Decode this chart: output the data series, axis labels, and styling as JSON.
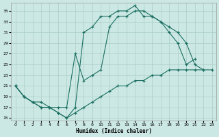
{
  "xlabel": "Humidex (Indice chaleur)",
  "background_color": "#cce8e4",
  "grid_color": "#aacec8",
  "line_color": "#1a6e60",
  "xlim": [
    -0.5,
    23.5
  ],
  "ylim": [
    14.5,
    36.5
  ],
  "yticks": [
    15,
    17,
    19,
    21,
    23,
    25,
    27,
    29,
    31,
    33,
    35
  ],
  "xticks": [
    0,
    1,
    2,
    3,
    4,
    5,
    6,
    7,
    8,
    9,
    10,
    11,
    12,
    13,
    14,
    15,
    16,
    17,
    18,
    19,
    20,
    21,
    22,
    23
  ],
  "line1_x": [
    0,
    1,
    2,
    3,
    4,
    5,
    6,
    7,
    8,
    9,
    10,
    11,
    12,
    13,
    14,
    15,
    16,
    17,
    18,
    19,
    20,
    21
  ],
  "line1_y": [
    21,
    19,
    18,
    17,
    17,
    16,
    15,
    17,
    31,
    32,
    34,
    34,
    35,
    35,
    36,
    34,
    34,
    33,
    31,
    29,
    25,
    26
  ],
  "line2_x": [
    0,
    1,
    2,
    3,
    4,
    5,
    6,
    7,
    8,
    9,
    10,
    11,
    12,
    13,
    14,
    15,
    16,
    17,
    18,
    19,
    20,
    21,
    22
  ],
  "line2_y": [
    21,
    19,
    18,
    18,
    17,
    17,
    17,
    27,
    22,
    23,
    24,
    32,
    34,
    34,
    35,
    35,
    34,
    33,
    32,
    31,
    29,
    25,
    24
  ],
  "line3_x": [
    0,
    1,
    2,
    3,
    4,
    5,
    6,
    7,
    8,
    9,
    10,
    11,
    12,
    13,
    14,
    15,
    16,
    17,
    18,
    19,
    20,
    21,
    22,
    23
  ],
  "line3_y": [
    21,
    19,
    18,
    17,
    17,
    16,
    15,
    16,
    17,
    18,
    19,
    20,
    21,
    21,
    22,
    22,
    23,
    23,
    24,
    24,
    24,
    24,
    24,
    24
  ]
}
